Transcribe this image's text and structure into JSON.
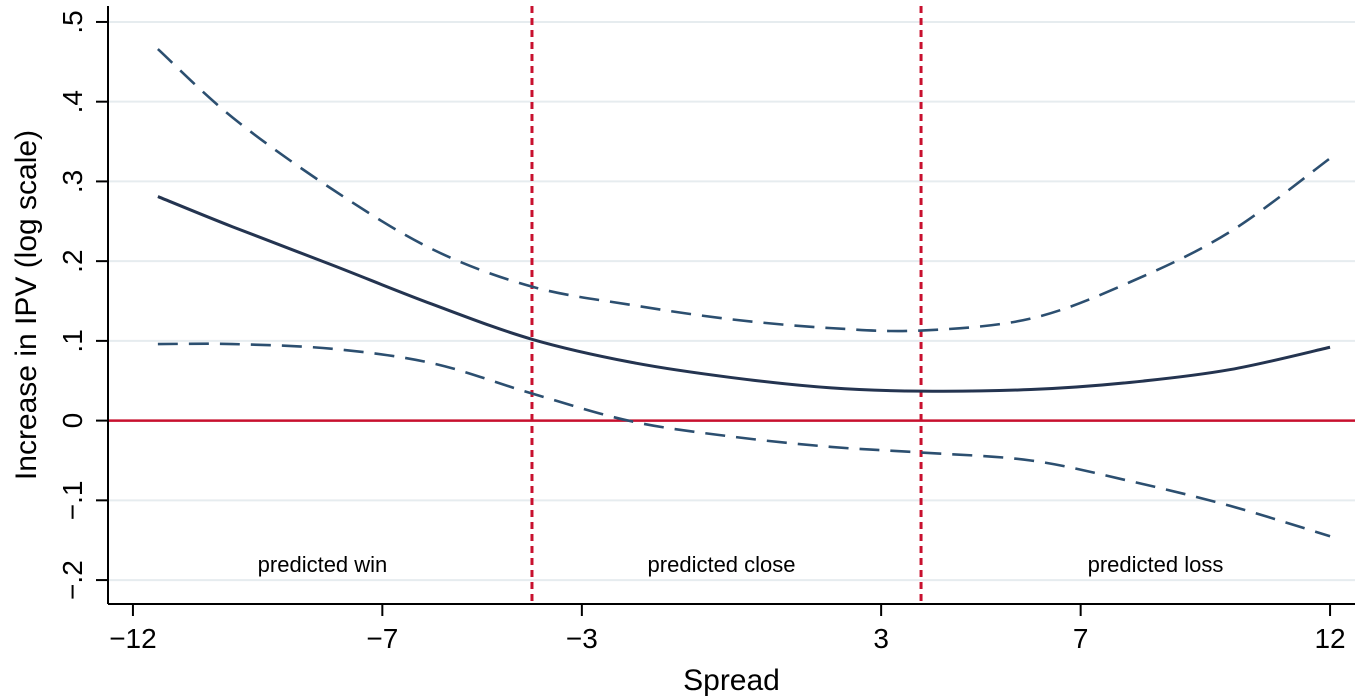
{
  "chart_data": {
    "type": "line",
    "title": "",
    "xlabel": "Spread",
    "ylabel": "Increase in IPV (log scale)",
    "xlim": [
      -12.5,
      12.5
    ],
    "ylim": [
      -0.23,
      0.52
    ],
    "x_ticks": [
      -12,
      -7,
      -3,
      3,
      7,
      12
    ],
    "x_tick_labels": [
      "−12",
      "−7",
      "−3",
      "3",
      "7",
      "12"
    ],
    "y_ticks": [
      -0.2,
      -0.1,
      0,
      0.1,
      0.2,
      0.3,
      0.4,
      0.5
    ],
    "y_tick_labels": [
      "−.2",
      "−.1",
      "0",
      ".1",
      ".2",
      ".3",
      ".4",
      ".5"
    ],
    "grid": true,
    "reference_lines": {
      "horizontal": [
        {
          "y": 0,
          "color": "#c8102e"
        }
      ],
      "vertical": [
        {
          "x": -4,
          "color": "#c8102e",
          "style": "dashed"
        },
        {
          "x": 3.8,
          "color": "#c8102e",
          "style": "dashed"
        }
      ]
    },
    "annotations": [
      {
        "text": "predicted win",
        "x": -8.2,
        "y": -0.18
      },
      {
        "text": "predicted close",
        "x": -0.2,
        "y": -0.18
      },
      {
        "text": "predicted loss",
        "x": 8.5,
        "y": -0.18
      }
    ],
    "x": [
      -11.5,
      -10,
      -8,
      -6,
      -4,
      -2,
      0,
      2,
      3.8,
      6,
      8,
      10,
      12
    ],
    "series": [
      {
        "style": "solid",
        "color": "#243450",
        "values": [
          0.281,
          0.243,
          0.195,
          0.146,
          0.102,
          0.073,
          0.054,
          0.041,
          0.037,
          0.039,
          0.048,
          0.064,
          0.092
        ]
      },
      {
        "style": "dashed",
        "color": "#2c4f70",
        "values": [
          0.466,
          0.38,
          0.29,
          0.215,
          0.168,
          0.145,
          0.127,
          0.116,
          0.113,
          0.128,
          0.174,
          0.237,
          0.329
        ]
      },
      {
        "style": "dashed",
        "color": "#2c4f70",
        "values": [
          0.096,
          0.096,
          0.09,
          0.072,
          0.034,
          -0.001,
          -0.02,
          -0.033,
          -0.04,
          -0.05,
          -0.076,
          -0.107,
          -0.145
        ]
      }
    ]
  }
}
